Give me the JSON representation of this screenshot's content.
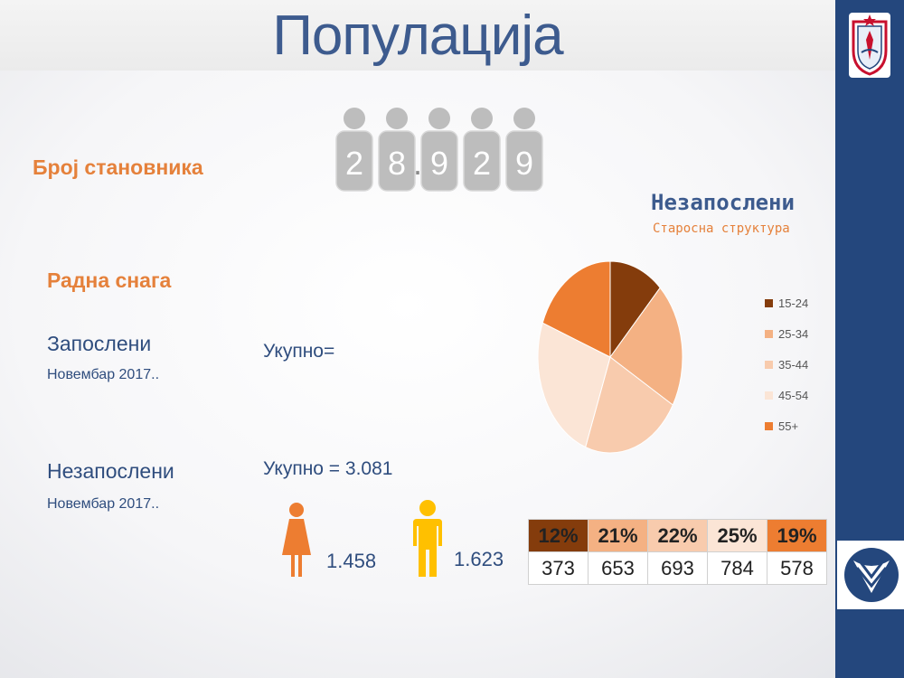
{
  "title": "Популација",
  "population": {
    "label": "Број становника",
    "digits": [
      "2",
      "8",
      "9",
      "2",
      "9"
    ],
    "separator": "."
  },
  "workforce": {
    "label": "Радна снага",
    "employed_label": "Запослени",
    "employed_date": "Новембар 2017..",
    "employed_total": "Укупно=",
    "unemployed_label": "Незапослени",
    "unemployed_date": "Новембар 2017..",
    "unemployed_total": "Укупно = 3.081",
    "female_count": "1.458",
    "male_count": "1.623"
  },
  "chart_data": {
    "type": "pie",
    "title": "Незапослени",
    "subtitle": "Старосна структура",
    "categories": [
      "15-24",
      "25-34",
      "35-44",
      "45-54",
      "55+"
    ],
    "values": [
      12,
      21,
      22,
      25,
      19
    ],
    "counts": [
      373,
      653,
      693,
      784,
      578
    ],
    "percent_labels": [
      "12%",
      "21%",
      "22%",
      "25%",
      "19%"
    ],
    "colors": [
      "#843c0c",
      "#f4b183",
      "#f8cbad",
      "#fbe5d6",
      "#ed7d31"
    ],
    "legend": "right"
  },
  "icons": [
    "person-group-icon",
    "female-icon",
    "male-icon",
    "municipality-crest-icon",
    "brand-logo-icon"
  ],
  "colors": {
    "accent_orange": "#e5813b",
    "title_blue": "#3d5b8e",
    "sidebar_blue": "#24477d"
  }
}
